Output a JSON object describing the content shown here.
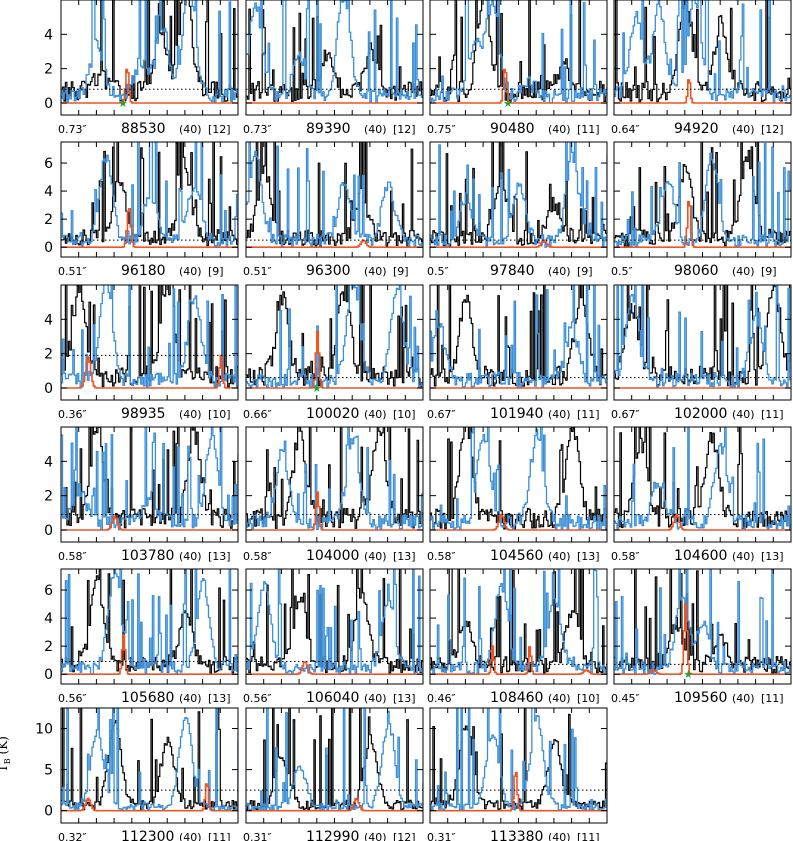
{
  "figure": {
    "ylabel": "T",
    "ylabel_sub": "B",
    "ylabel_unit": "(K)"
  },
  "colors": {
    "observed": "#000000",
    "model_total": "#3b8fd8",
    "model_species": "#ee5522",
    "marker": "#2aa02a",
    "threshold": "#000000"
  },
  "chart_data": [
    {
      "type": "line",
      "row": 0,
      "col": 0,
      "beam": "0.73″",
      "freq": "88530",
      "width": "(40)",
      "ref": "[12]",
      "ylim": [
        -0.7,
        6
      ],
      "yticks": [
        0,
        2,
        4
      ],
      "threshold": 0.8,
      "marker": true,
      "marker_x": 0.35,
      "species_peaks": [
        {
          "x": 0.37,
          "h": 2.1,
          "w": 0.012
        }
      ],
      "obs": [
        {
          "x": 0.22,
          "h": 0.9
        },
        {
          "x": 0.56,
          "h": 3.5
        },
        {
          "x": 0.7,
          "h": 5.9
        }
      ],
      "total": [
        {
          "x": 0.2,
          "h": 3.2
        },
        {
          "x": 0.45,
          "h": 2.0
        },
        {
          "x": 0.57,
          "h": 4.0
        },
        {
          "x": 0.72,
          "h": 6.5
        }
      ]
    },
    {
      "type": "line",
      "row": 0,
      "col": 1,
      "beam": "0.73″",
      "freq": "89390",
      "width": "(40)",
      "ref": "[12]",
      "ylim": [
        -0.7,
        6
      ],
      "yticks": [
        0,
        2,
        4
      ],
      "threshold": 0.8,
      "marker": false,
      "species_peaks": [],
      "obs": [
        {
          "x": 0.45,
          "h": 2.2
        },
        {
          "x": 0.7,
          "h": 2.5
        }
      ],
      "total": [
        {
          "x": 0.05,
          "h": 5.5
        },
        {
          "x": 0.3,
          "h": 2.2
        },
        {
          "x": 0.55,
          "h": 6.0
        }
      ]
    },
    {
      "type": "line",
      "row": 0,
      "col": 2,
      "beam": "0.75″",
      "freq": "90480",
      "width": "(40)",
      "ref": "[11]",
      "ylim": [
        -0.7,
        6
      ],
      "yticks": [
        0,
        2,
        4
      ],
      "threshold": 0.8,
      "marker": true,
      "marker_x": 0.44,
      "species_peaks": [
        {
          "x": 0.42,
          "h": 2.1,
          "w": 0.012
        }
      ],
      "obs": [
        {
          "x": 0.3,
          "h": 5.8
        },
        {
          "x": 0.75,
          "h": 1.5
        }
      ],
      "total": [
        {
          "x": 0.25,
          "h": 3.0
        },
        {
          "x": 0.35,
          "h": 5.5
        },
        {
          "x": 0.55,
          "h": 0.8
        }
      ]
    },
    {
      "type": "line",
      "row": 0,
      "col": 3,
      "beam": "0.64″",
      "freq": "94920",
      "width": "(40)",
      "ref": "[12]",
      "ylim": [
        -0.7,
        6
      ],
      "yticks": [
        0,
        2,
        4
      ],
      "threshold": 0.8,
      "marker": false,
      "species_peaks": [
        {
          "x": 0.42,
          "h": 1.5,
          "w": 0.01
        }
      ],
      "obs": [
        {
          "x": 0.4,
          "h": 5.5
        },
        {
          "x": 0.6,
          "h": 4.0
        }
      ],
      "total": [
        {
          "x": 0.12,
          "h": 4.5
        },
        {
          "x": 0.25,
          "h": 5.0
        },
        {
          "x": 0.45,
          "h": 5.8
        }
      ]
    },
    {
      "type": "line",
      "row": 1,
      "col": 0,
      "beam": "0.51″",
      "freq": "96180",
      "width": "(40)",
      "ref": "[9]",
      "ylim": [
        -0.7,
        7.5
      ],
      "yticks": [
        0,
        2,
        4,
        6
      ],
      "threshold": 0.5,
      "marker": false,
      "species_peaks": [
        {
          "x": 0.38,
          "h": 2.9,
          "w": 0.014
        }
      ],
      "obs": [
        {
          "x": 0.33,
          "h": 4.2
        },
        {
          "x": 0.7,
          "h": 4.5
        }
      ],
      "total": [
        {
          "x": 0.25,
          "h": 6.0
        },
        {
          "x": 0.5,
          "h": 3.5
        },
        {
          "x": 0.75,
          "h": 4.0
        }
      ]
    },
    {
      "type": "line",
      "row": 1,
      "col": 1,
      "beam": "0.51″",
      "freq": "96300",
      "width": "(40)",
      "ref": "[9]",
      "ylim": [
        -0.7,
        7.5
      ],
      "yticks": [
        0,
        2,
        4,
        6
      ],
      "threshold": 0.5,
      "marker": false,
      "species_peaks": [
        {
          "x": 0.66,
          "h": 0.5,
          "w": 0.02
        }
      ],
      "obs": [
        {
          "x": 0.1,
          "h": 5.0
        },
        {
          "x": 0.65,
          "h": 3.0
        }
      ],
      "total": [
        {
          "x": 0.05,
          "h": 6.0
        },
        {
          "x": 0.55,
          "h": 4.0
        },
        {
          "x": 0.8,
          "h": 4.0
        }
      ]
    },
    {
      "type": "line",
      "row": 1,
      "col": 2,
      "beam": "0.5″",
      "freq": "97840",
      "width": "(40)",
      "ref": "[9]",
      "ylim": [
        -0.7,
        7.5
      ],
      "yticks": [
        0,
        2,
        4,
        6
      ],
      "threshold": 0.5,
      "marker": false,
      "species_peaks": [
        {
          "x": 0.64,
          "h": 0.5,
          "w": 0.02
        }
      ],
      "obs": [
        {
          "x": 0.4,
          "h": 4.0
        },
        {
          "x": 0.7,
          "h": 2.5
        }
      ],
      "total": [
        {
          "x": 0.2,
          "h": 3.0
        },
        {
          "x": 0.5,
          "h": 4.0
        },
        {
          "x": 0.8,
          "h": 6.0
        }
      ]
    },
    {
      "type": "line",
      "row": 1,
      "col": 3,
      "beam": "0.5″",
      "freq": "98060",
      "width": "(40)",
      "ref": "[9]",
      "ylim": [
        -0.7,
        7.5
      ],
      "yticks": [
        0,
        2,
        4,
        6
      ],
      "threshold": 0.5,
      "marker": false,
      "species_peaks": [
        {
          "x": 0.42,
          "h": 3.5,
          "w": 0.012
        }
      ],
      "obs": [
        {
          "x": 0.4,
          "h": 5.0
        },
        {
          "x": 0.75,
          "h": 6.0
        }
      ],
      "total": [
        {
          "x": 0.3,
          "h": 4.5
        },
        {
          "x": 0.55,
          "h": 6.0
        }
      ]
    },
    {
      "type": "line",
      "row": 2,
      "col": 0,
      "beam": "0.36″",
      "freq": "98935",
      "width": "(40)",
      "ref": "[10]",
      "ylim": [
        -0.7,
        6
      ],
      "yticks": [
        0,
        2,
        4
      ],
      "threshold": 1.9,
      "marker": false,
      "species_peaks": [
        {
          "x": 0.15,
          "h": 1.8,
          "w": 0.02
        },
        {
          "x": 0.9,
          "h": 1.9,
          "w": 0.012
        }
      ],
      "obs": [
        {
          "x": 0.1,
          "h": 5.0
        },
        {
          "x": 0.6,
          "h": 5.5
        }
      ],
      "total": [
        {
          "x": 0.25,
          "h": 5.8
        },
        {
          "x": 0.75,
          "h": 5.0
        }
      ]
    },
    {
      "type": "line",
      "row": 2,
      "col": 1,
      "beam": "0.66″",
      "freq": "100020",
      "width": "(40)",
      "ref": "[10]",
      "ylim": [
        -0.7,
        6
      ],
      "yticks": [
        0,
        2,
        4
      ],
      "threshold": 0.6,
      "marker": true,
      "marker_x": 0.4,
      "species_peaks": [
        {
          "x": 0.4,
          "h": 3.3,
          "w": 0.012
        }
      ],
      "obs": [
        {
          "x": 0.2,
          "h": 4.5
        },
        {
          "x": 0.55,
          "h": 5.0
        }
      ],
      "total": [
        {
          "x": 0.6,
          "h": 5.8
        },
        {
          "x": 0.85,
          "h": 5.0
        }
      ]
    },
    {
      "type": "line",
      "row": 2,
      "col": 2,
      "beam": "0.67″",
      "freq": "101940",
      "width": "(40)",
      "ref": "[11]",
      "ylim": [
        -0.7,
        6
      ],
      "yticks": [
        0,
        2,
        4
      ],
      "threshold": 0.6,
      "marker": false,
      "species_peaks": [],
      "obs": [
        {
          "x": 0.2,
          "h": 4.5
        },
        {
          "x": 0.85,
          "h": 5.0
        }
      ],
      "total": [
        {
          "x": 0.05,
          "h": 3.0
        },
        {
          "x": 0.8,
          "h": 3.0
        }
      ]
    },
    {
      "type": "line",
      "row": 2,
      "col": 3,
      "beam": "0.67″",
      "freq": "102000",
      "width": "(40)",
      "ref": "[11]",
      "ylim": [
        -0.7,
        6
      ],
      "yticks": [
        0,
        2,
        4
      ],
      "threshold": 0.6,
      "marker": false,
      "species_peaks": [],
      "obs": [
        {
          "x": 0.1,
          "h": 4.0
        },
        {
          "x": 0.9,
          "h": 5.5
        }
      ],
      "total": [
        {
          "x": 0.1,
          "h": 5.0
        },
        {
          "x": 0.8,
          "h": 3.5
        }
      ]
    },
    {
      "type": "line",
      "row": 3,
      "col": 0,
      "beam": "0.58″",
      "freq": "103780",
      "width": "(40)",
      "ref": "[13]",
      "ylim": [
        -0.7,
        6
      ],
      "yticks": [
        0,
        2,
        4
      ],
      "threshold": 0.9,
      "marker": false,
      "species_peaks": [
        {
          "x": 0.3,
          "h": 0.8,
          "w": 0.02
        }
      ],
      "obs": [
        {
          "x": 0.2,
          "h": 5.5
        },
        {
          "x": 0.75,
          "h": 5.0
        }
      ],
      "total": [
        {
          "x": 0.1,
          "h": 2.0
        },
        {
          "x": 0.5,
          "h": 1.5
        },
        {
          "x": 0.85,
          "h": 5.0
        }
      ]
    },
    {
      "type": "line",
      "row": 3,
      "col": 1,
      "beam": "0.58″",
      "freq": "104000",
      "width": "(40)",
      "ref": "[13]",
      "ylim": [
        -0.7,
        6
      ],
      "yticks": [
        0,
        2,
        4
      ],
      "threshold": 0.9,
      "marker": false,
      "species_peaks": [
        {
          "x": 0.4,
          "h": 2.2,
          "w": 0.012
        }
      ],
      "obs": [
        {
          "x": 0.3,
          "h": 5.0
        },
        {
          "x": 0.75,
          "h": 5.5
        }
      ],
      "total": [
        {
          "x": 0.2,
          "h": 4.0
        },
        {
          "x": 0.6,
          "h": 5.0
        }
      ]
    },
    {
      "type": "line",
      "row": 3,
      "col": 2,
      "beam": "0.58″",
      "freq": "104560",
      "width": "(40)",
      "ref": "[13]",
      "ylim": [
        -0.7,
        6
      ],
      "yticks": [
        0,
        2,
        4
      ],
      "threshold": 0.9,
      "marker": false,
      "species_peaks": [
        {
          "x": 0.4,
          "h": 0.9,
          "w": 0.02
        }
      ],
      "obs": [
        {
          "x": 0.2,
          "h": 5.0
        },
        {
          "x": 0.8,
          "h": 5.5
        }
      ],
      "total": [
        {
          "x": 0.3,
          "h": 5.0
        },
        {
          "x": 0.6,
          "h": 5.0
        }
      ]
    },
    {
      "type": "line",
      "row": 3,
      "col": 3,
      "beam": "0.58″",
      "freq": "104600",
      "width": "(40)",
      "ref": "[13]",
      "ylim": [
        -0.7,
        6
      ],
      "yticks": [
        0,
        2,
        4
      ],
      "threshold": 0.9,
      "marker": false,
      "species_peaks": [
        {
          "x": 0.35,
          "h": 0.9,
          "w": 0.02
        }
      ],
      "obs": [
        {
          "x": 0.15,
          "h": 4.5
        },
        {
          "x": 0.55,
          "h": 5.0
        }
      ],
      "total": [
        {
          "x": 0.25,
          "h": 2.5
        },
        {
          "x": 0.6,
          "h": 4.5
        }
      ]
    },
    {
      "type": "line",
      "row": 4,
      "col": 0,
      "beam": "0.56″",
      "freq": "105680",
      "width": "(40)",
      "ref": "[13]",
      "ylim": [
        -0.7,
        7.5
      ],
      "yticks": [
        0,
        2,
        4,
        6
      ],
      "threshold": 0.9,
      "marker": false,
      "species_peaks": [
        {
          "x": 0.35,
          "h": 2.8,
          "w": 0.012
        }
      ],
      "obs": [
        {
          "x": 0.2,
          "h": 6.0
        },
        {
          "x": 0.7,
          "h": 4.0
        }
      ],
      "total": [
        {
          "x": 0.3,
          "h": 7.0
        },
        {
          "x": 0.8,
          "h": 6.0
        }
      ]
    },
    {
      "type": "line",
      "row": 4,
      "col": 1,
      "beam": "0.56″",
      "freq": "106040",
      "width": "(40)",
      "ref": "[13]",
      "ylim": [
        -0.7,
        7.5
      ],
      "yticks": [
        0,
        2,
        4,
        6
      ],
      "threshold": 0.9,
      "marker": false,
      "species_peaks": [
        {
          "x": 0.33,
          "h": 0.9,
          "w": 0.02
        }
      ],
      "obs": [
        {
          "x": 0.3,
          "h": 5.0
        },
        {
          "x": 0.65,
          "h": 5.5
        }
      ],
      "total": [
        {
          "x": 0.1,
          "h": 6.0
        },
        {
          "x": 0.8,
          "h": 5.0
        }
      ]
    },
    {
      "type": "line",
      "row": 4,
      "col": 2,
      "beam": "0.46″",
      "freq": "108460",
      "width": "(40)",
      "ref": "[10]",
      "ylim": [
        -0.7,
        7.5
      ],
      "yticks": [
        0,
        2,
        4,
        6
      ],
      "threshold": 0.7,
      "marker": false,
      "species_peaks": [
        {
          "x": 0.35,
          "h": 2.0,
          "w": 0.01
        },
        {
          "x": 0.56,
          "h": 2.0,
          "w": 0.01
        },
        {
          "x": 0.88,
          "h": 0.3,
          "w": 0.02
        }
      ],
      "obs": [
        {
          "x": 0.2,
          "h": 3.0
        },
        {
          "x": 0.8,
          "h": 4.0
        }
      ],
      "total": [
        {
          "x": 0.4,
          "h": 6.0
        },
        {
          "x": 0.7,
          "h": 5.0
        }
      ]
    },
    {
      "type": "line",
      "row": 4,
      "col": 3,
      "beam": "0.45″",
      "freq": "109560",
      "width": "(40)",
      "ref": "[11]",
      "ylim": [
        -0.7,
        7.5
      ],
      "yticks": [
        0,
        2,
        4,
        6
      ],
      "threshold": 0.7,
      "marker": true,
      "marker_x": 0.42,
      "species_peaks": [
        {
          "x": 0.4,
          "h": 5.0,
          "w": 0.012
        },
        {
          "x": 0.22,
          "h": 0.3,
          "w": 0.02
        }
      ],
      "obs": [
        {
          "x": 0.35,
          "h": 3.0
        },
        {
          "x": 0.6,
          "h": 2.0
        }
      ],
      "total": [
        {
          "x": 0.38,
          "h": 5.0
        },
        {
          "x": 0.5,
          "h": 3.0
        }
      ]
    },
    {
      "type": "line",
      "row": 5,
      "col": 0,
      "beam": "0.32″",
      "freq": "112300",
      "width": "(40)",
      "ref": "[11]",
      "ylim": [
        -1.5,
        12.5
      ],
      "yticks": [
        0,
        5,
        10
      ],
      "threshold": 2.5,
      "marker": false,
      "species_peaks": [
        {
          "x": 0.15,
          "h": 1.5,
          "w": 0.02
        },
        {
          "x": 0.82,
          "h": 3.5,
          "w": 0.012
        }
      ],
      "obs": [
        {
          "x": 0.3,
          "h": 10.0
        },
        {
          "x": 0.6,
          "h": 8.0
        }
      ],
      "total": [
        {
          "x": 0.2,
          "h": 9.0
        },
        {
          "x": 0.7,
          "h": 11.0
        }
      ]
    },
    {
      "type": "line",
      "row": 5,
      "col": 1,
      "beam": "0.31″",
      "freq": "112990",
      "width": "(40)",
      "ref": "[12]",
      "ylim": [
        -1.5,
        12.5
      ],
      "yticks": [
        0,
        5,
        10
      ],
      "threshold": 2.5,
      "marker": false,
      "species_peaks": [
        {
          "x": 0.62,
          "h": 1.5,
          "w": 0.02
        }
      ],
      "obs": [
        {
          "x": 0.2,
          "h": 6.0
        },
        {
          "x": 0.7,
          "h": 8.0
        }
      ],
      "total": [
        {
          "x": 0.3,
          "h": 5.0
        },
        {
          "x": 0.8,
          "h": 10.0
        }
      ]
    },
    {
      "type": "line",
      "row": 5,
      "col": 2,
      "beam": "0.31″",
      "freq": "113380",
      "width": "(40)",
      "ref": "[11]",
      "ylim": [
        -1.5,
        12.5
      ],
      "yticks": [
        0,
        5,
        10
      ],
      "threshold": 2.5,
      "marker": false,
      "species_peaks": [
        {
          "x": 0.48,
          "h": 5.0,
          "w": 0.012
        }
      ],
      "obs": [
        {
          "x": 0.2,
          "h": 10.0
        },
        {
          "x": 0.7,
          "h": 8.0
        }
      ],
      "total": [
        {
          "x": 0.35,
          "h": 9.0
        },
        {
          "x": 0.6,
          "h": 11.0
        }
      ]
    }
  ]
}
